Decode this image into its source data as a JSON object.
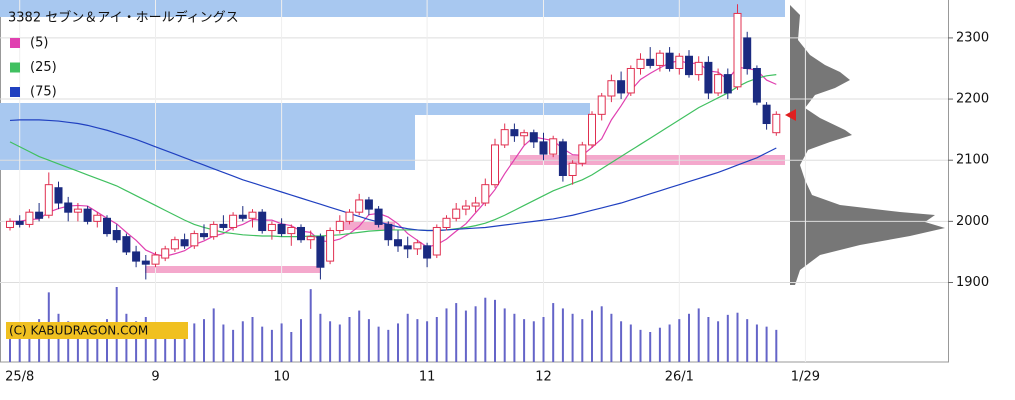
{
  "chart_data": {
    "type": "candlestick",
    "title": "3382 セブン＆アイ・ホールディングス",
    "copyright": "(C) KABUDRAGON.COM",
    "up_color": "#e03050",
    "down_color": "#1a2a80",
    "volume_color": "#6464c8",
    "grid": true,
    "ylim": [
      1770,
      2362
    ],
    "yticks": [
      1900,
      2000,
      2100,
      2200,
      2300
    ],
    "xticks": [
      {
        "value": 1,
        "label": "25/8"
      },
      {
        "value": 15,
        "label": "9"
      },
      {
        "value": 28,
        "label": "10"
      },
      {
        "value": 43,
        "label": "11"
      },
      {
        "value": 55,
        "label": "12"
      },
      {
        "value": 69,
        "label": "26/1"
      },
      {
        "value": 82,
        "label": "1/29"
      }
    ],
    "candles": [
      [
        1990,
        2005,
        1985,
        2000
      ],
      [
        2000,
        2010,
        1990,
        1995
      ],
      [
        1995,
        2020,
        1990,
        2015
      ],
      [
        2015,
        2030,
        2000,
        2005
      ],
      [
        2010,
        2080,
        2005,
        2060
      ],
      [
        2055,
        2065,
        2020,
        2030
      ],
      [
        2030,
        2040,
        2000,
        2015
      ],
      [
        2015,
        2030,
        2000,
        2020
      ],
      [
        2020,
        2025,
        1995,
        2000
      ],
      [
        2000,
        2015,
        1990,
        2010
      ],
      [
        2005,
        2010,
        1975,
        1980
      ],
      [
        1985,
        1995,
        1965,
        1970
      ],
      [
        1975,
        1980,
        1945,
        1950
      ],
      [
        1950,
        1960,
        1925,
        1935
      ],
      [
        1935,
        1945,
        1905,
        1930
      ],
      [
        1930,
        1950,
        1925,
        1945
      ],
      [
        1940,
        1960,
        1935,
        1955
      ],
      [
        1955,
        1975,
        1950,
        1970
      ],
      [
        1970,
        1980,
        1955,
        1960
      ],
      [
        1960,
        1985,
        1955,
        1980
      ],
      [
        1980,
        1995,
        1970,
        1975
      ],
      [
        1975,
        2000,
        1970,
        1995
      ],
      [
        1995,
        2010,
        1985,
        1990
      ],
      [
        1990,
        2015,
        1985,
        2010
      ],
      [
        2010,
        2025,
        2000,
        2005
      ],
      [
        2005,
        2020,
        1990,
        2015
      ],
      [
        2015,
        2020,
        1980,
        1985
      ],
      [
        1985,
        2000,
        1970,
        1995
      ],
      [
        1995,
        2005,
        1975,
        1980
      ],
      [
        1980,
        1995,
        1960,
        1990
      ],
      [
        1990,
        1995,
        1965,
        1970
      ],
      [
        1970,
        1985,
        1955,
        1975
      ],
      [
        1975,
        1980,
        1905,
        1925
      ],
      [
        1935,
        1990,
        1930,
        1985
      ],
      [
        1985,
        2010,
        1980,
        2000
      ],
      [
        2000,
        2020,
        1995,
        2015
      ],
      [
        2015,
        2045,
        2010,
        2035
      ],
      [
        2035,
        2040,
        2010,
        2020
      ],
      [
        2020,
        2025,
        1990,
        1995
      ],
      [
        1995,
        2000,
        1960,
        1970
      ],
      [
        1970,
        1985,
        1950,
        1960
      ],
      [
        1960,
        1975,
        1940,
        1955
      ],
      [
        1955,
        1970,
        1945,
        1965
      ],
      [
        1960,
        1965,
        1925,
        1940
      ],
      [
        1945,
        1995,
        1940,
        1990
      ],
      [
        1990,
        2010,
        1985,
        2005
      ],
      [
        2005,
        2030,
        2000,
        2020
      ],
      [
        2020,
        2035,
        2010,
        2025
      ],
      [
        2025,
        2040,
        2015,
        2030
      ],
      [
        2030,
        2070,
        2025,
        2060
      ],
      [
        2060,
        2135,
        2055,
        2125
      ],
      [
        2125,
        2160,
        2120,
        2150
      ],
      [
        2150,
        2160,
        2130,
        2140
      ],
      [
        2140,
        2150,
        2125,
        2145
      ],
      [
        2145,
        2150,
        2120,
        2130
      ],
      [
        2130,
        2145,
        2100,
        2110
      ],
      [
        2110,
        2140,
        2105,
        2135
      ],
      [
        2130,
        2135,
        2065,
        2075
      ],
      [
        2075,
        2100,
        2060,
        2095
      ],
      [
        2095,
        2130,
        2090,
        2125
      ],
      [
        2125,
        2180,
        2120,
        2175
      ],
      [
        2175,
        2210,
        2165,
        2205
      ],
      [
        2205,
        2240,
        2195,
        2230
      ],
      [
        2230,
        2245,
        2200,
        2210
      ],
      [
        2210,
        2255,
        2205,
        2250
      ],
      [
        2250,
        2275,
        2240,
        2265
      ],
      [
        2265,
        2285,
        2250,
        2255
      ],
      [
        2255,
        2280,
        2245,
        2275
      ],
      [
        2275,
        2285,
        2245,
        2250
      ],
      [
        2250,
        2275,
        2240,
        2270
      ],
      [
        2270,
        2280,
        2235,
        2240
      ],
      [
        2240,
        2270,
        2230,
        2260
      ],
      [
        2260,
        2270,
        2200,
        2210
      ],
      [
        2210,
        2250,
        2205,
        2240
      ],
      [
        2240,
        2250,
        2200,
        2210
      ],
      [
        2220,
        2355,
        2215,
        2340
      ],
      [
        2300,
        2310,
        2240,
        2250
      ],
      [
        2250,
        2255,
        2190,
        2195
      ],
      [
        2190,
        2195,
        2150,
        2160
      ],
      [
        2145,
        2180,
        2140,
        2175
      ]
    ],
    "volume": [
      30,
      35,
      28,
      40,
      65,
      45,
      38,
      30,
      35,
      32,
      40,
      70,
      45,
      38,
      42,
      35,
      30,
      28,
      33,
      36,
      40,
      50,
      35,
      30,
      38,
      42,
      33,
      30,
      36,
      28,
      40,
      68,
      45,
      38,
      35,
      42,
      48,
      40,
      33,
      30,
      36,
      45,
      40,
      38,
      42,
      50,
      55,
      48,
      52,
      60,
      58,
      50,
      45,
      40,
      38,
      42,
      55,
      50,
      45,
      40,
      48,
      52,
      45,
      38,
      35,
      30,
      28,
      32,
      35,
      40,
      45,
      50,
      42,
      38,
      44,
      46,
      40,
      35,
      33,
      30
    ],
    "series": [
      {
        "name": "(5)",
        "color": "#e040b0",
        "values": [
          2000,
          2000,
          2003,
          2004,
          2015,
          2021,
          2025,
          2026,
          2025,
          2015,
          2005,
          1996,
          1982,
          1969,
          1953,
          1946,
          1943,
          1947,
          1952,
          1962,
          1968,
          1976,
          1980,
          1990,
          1995,
          2003,
          2002,
          2002,
          1996,
          1993,
          1984,
          1982,
          1968,
          1967,
          1971,
          1980,
          1992,
          2011,
          2013,
          2007,
          1996,
          1980,
          1969,
          1958,
          1962,
          1971,
          1984,
          1996,
          2014,
          2032,
          2052,
          2078,
          2101,
          2124,
          2138,
          2135,
          2132,
          2119,
          2109,
          2108,
          2121,
          2135,
          2166,
          2189,
          2214,
          2232,
          2242,
          2251,
          2259,
          2263,
          2258,
          2259,
          2246,
          2244,
          2232,
          2252,
          2250,
          2247,
          2231,
          2224
        ]
      },
      {
        "name": "(25)",
        "color": "#40c060",
        "values": [
          2130,
          2122,
          2114,
          2106,
          2100,
          2094,
          2088,
          2082,
          2076,
          2070,
          2064,
          2058,
          2050,
          2042,
          2034,
          2026,
          2018,
          2010,
          2002,
          1995,
          1990,
          1986,
          1982,
          1980,
          1978,
          1977,
          1976,
          1976,
          1975,
          1975,
          1975,
          1976,
          1976,
          1977,
          1978,
          1980,
          1982,
          1984,
          1985,
          1986,
          1986,
          1986,
          1986,
          1985,
          1985,
          1986,
          1988,
          1990,
          1993,
          1997,
          2003,
          2010,
          2018,
          2026,
          2034,
          2042,
          2050,
          2056,
          2062,
          2068,
          2076,
          2086,
          2096,
          2106,
          2116,
          2126,
          2136,
          2146,
          2156,
          2166,
          2176,
          2186,
          2194,
          2202,
          2210,
          2220,
          2228,
          2234,
          2238,
          2240
        ]
      },
      {
        "name": "(75)",
        "color": "#2040c0",
        "values": [
          2165,
          2166,
          2166,
          2166,
          2165,
          2164,
          2162,
          2160,
          2157,
          2153,
          2149,
          2144,
          2139,
          2134,
          2128,
          2122,
          2116,
          2110,
          2104,
          2098,
          2092,
          2086,
          2080,
          2074,
          2068,
          2063,
          2058,
          2053,
          2048,
          2043,
          2038,
          2033,
          2028,
          2023,
          2018,
          2013,
          2008,
          2003,
          1999,
          1995,
          1991,
          1988,
          1986,
          1985,
          1985,
          1986,
          1987,
          1988,
          1989,
          1990,
          1992,
          1994,
          1996,
          1998,
          2000,
          2002,
          2004,
          2007,
          2010,
          2014,
          2018,
          2022,
          2026,
          2030,
          2035,
          2040,
          2045,
          2050,
          2055,
          2060,
          2065,
          2070,
          2075,
          2080,
          2086,
          2092,
          2098,
          2104,
          2112,
          2120
        ]
      }
    ]
  }
}
